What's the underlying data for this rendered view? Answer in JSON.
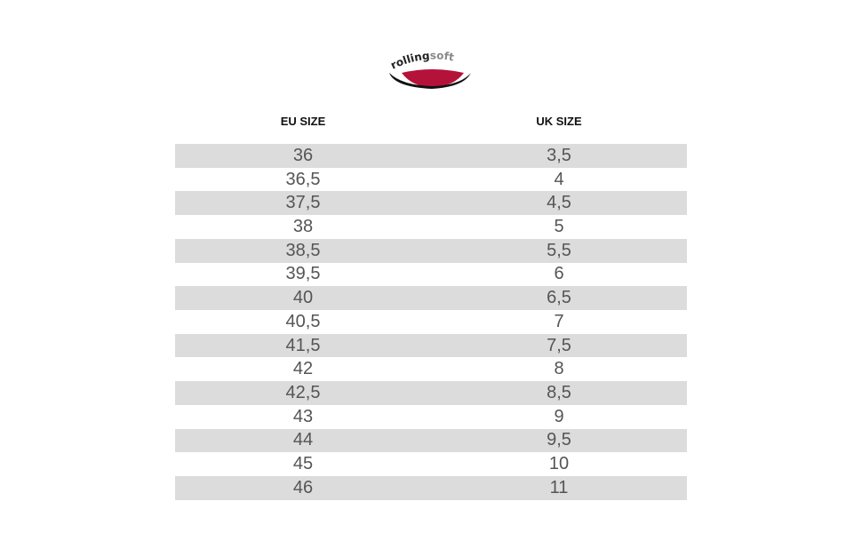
{
  "logo": {
    "brand": "rolling",
    "accent": "soft"
  },
  "table": {
    "headers": [
      "EU SIZE",
      "UK SIZE"
    ],
    "rows": [
      [
        "36",
        "3,5"
      ],
      [
        "36,5",
        "4"
      ],
      [
        "37,5",
        "4,5"
      ],
      [
        "38",
        "5"
      ],
      [
        "38,5",
        "5,5"
      ],
      [
        "39,5",
        "6"
      ],
      [
        "40",
        "6,5"
      ],
      [
        "40,5",
        "7"
      ],
      [
        "41,5",
        "7,5"
      ],
      [
        "42",
        "8"
      ],
      [
        "42,5",
        "8,5"
      ],
      [
        "43",
        "9"
      ],
      [
        "44",
        "9,5"
      ],
      [
        "45",
        "10"
      ],
      [
        "46",
        "11"
      ]
    ]
  }
}
